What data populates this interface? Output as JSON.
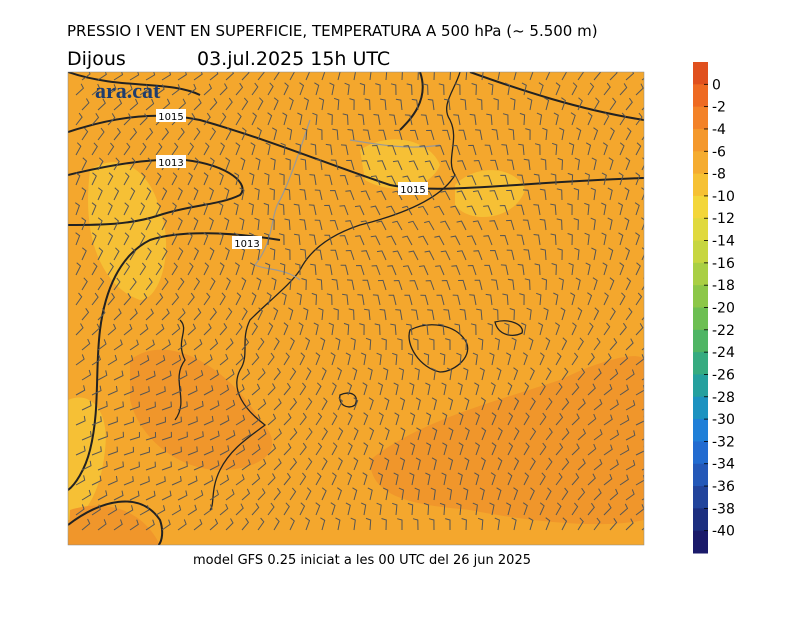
{
  "header": {
    "title": "PRESSIO I VENT EN SUPERFICIE, TEMPERATURA A 500 hPa (~ 5.500 m)",
    "day": "Dijous",
    "datetime": "03.jul.2025 15h UTC"
  },
  "logo": "ara.cat",
  "isobar_labels": [
    1015,
    1013,
    1015,
    1013
  ],
  "footer": "model GFS 0.25 iniciat a les 00 UTC del 26 jun 2025",
  "colorbar": {
    "ticks": [
      0,
      -2,
      -4,
      -6,
      -8,
      -10,
      -12,
      -14,
      -16,
      -18,
      -20,
      -22,
      -24,
      -26,
      -28,
      -30,
      -32,
      -34,
      -36,
      -38,
      -40
    ],
    "colors": [
      "#e0501e",
      "#ee6a22",
      "#f38228",
      "#f4982c",
      "#f5ac30",
      "#f6c134",
      "#f3d63a",
      "#e0d93e",
      "#c7d640",
      "#a9cf44",
      "#8cc748",
      "#6dbf52",
      "#4fb564",
      "#36ab80",
      "#25a09e",
      "#1d92c0",
      "#1f7fd8",
      "#226bd0",
      "#2458b8",
      "#22449c",
      "#1c2f80",
      "#1a1a6a"
    ]
  }
}
